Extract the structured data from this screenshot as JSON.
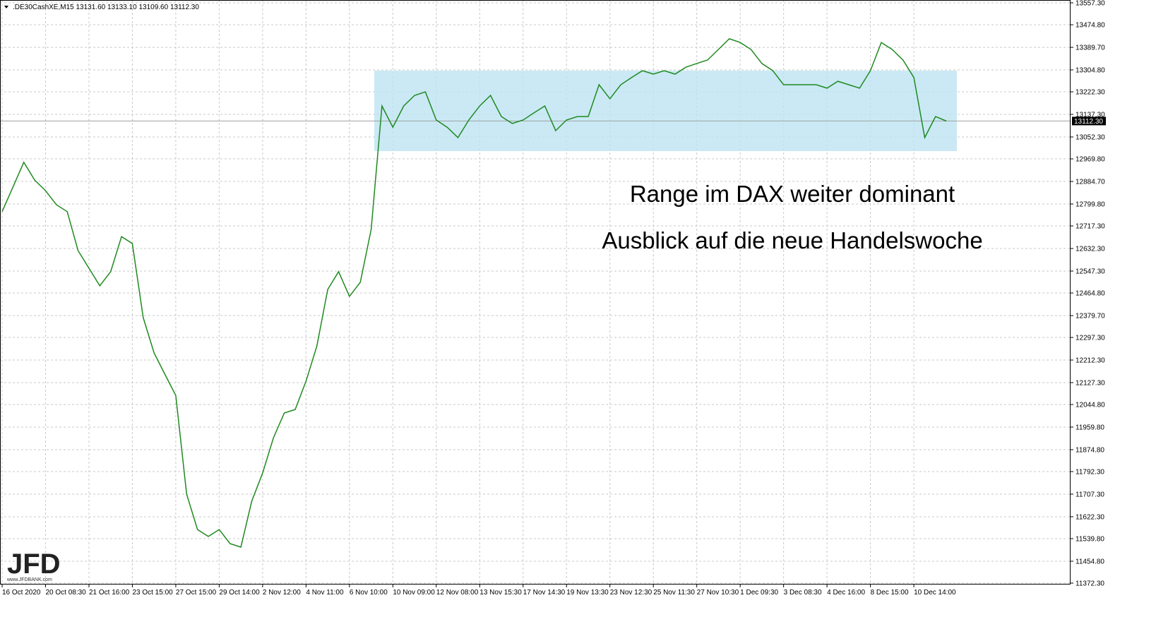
{
  "chart_data": {
    "type": "line",
    "header": ".DE30CashXE,M15  13131.60 13133.10 13109.60 13112.30",
    "annotations": [
      "Range im DAX weiter dominant",
      "Ausblick auf die neue Handelswoche"
    ],
    "logo": "JFD",
    "logo_url": "www.JFDBANK.com",
    "categories": [
      "16 Oct 2020",
      null,
      null,
      null,
      "20 Oct 08:30",
      null,
      null,
      null,
      "21 Oct 16:00",
      null,
      null,
      null,
      "23 Oct 15:00",
      null,
      null,
      null,
      "27 Oct 15:00",
      null,
      null,
      null,
      "29 Oct 14:00",
      null,
      null,
      null,
      "2 Nov 12:00",
      null,
      null,
      null,
      "4 Nov 11:00",
      null,
      null,
      null,
      "6 Nov 10:00",
      null,
      null,
      null,
      "10 Nov 09:00",
      null,
      null,
      null,
      "12 Nov 08:00",
      null,
      null,
      null,
      "13 Nov 15:30",
      null,
      null,
      null,
      "17 Nov 14:30",
      null,
      null,
      null,
      "19 Nov 13:30",
      null,
      null,
      null,
      "23 Nov 12:30",
      null,
      null,
      null,
      "25 Nov 11:30",
      null,
      null,
      null,
      "27 Nov 10:30",
      null,
      null,
      null,
      "1 Dec 09:30",
      null,
      null,
      null,
      "3 Dec 08:30",
      null,
      null,
      null,
      "4 Dec 16:00",
      null,
      null,
      null,
      "8 Dec 15:00",
      null,
      null,
      null,
      "10 Dec 14:00",
      null,
      null,
      null
    ],
    "series": [
      {
        "name": ".DE30CashXE,M15",
        "color": "#1f8a1f",
        "values": [
          12771,
          12864,
          12957,
          12890,
          12850,
          12797,
          12771,
          12624,
          12558,
          12492,
          12545,
          12677,
          12651,
          12372,
          12239,
          12159,
          12079,
          11707,
          11574,
          11548,
          11574,
          11521,
          11508,
          11681,
          11787,
          11920,
          12013,
          12026,
          12133,
          12265,
          12478,
          12545,
          12452,
          12505,
          12704,
          13169,
          13089,
          13169,
          13209,
          13222,
          13116,
          13089,
          13050,
          13116,
          13169,
          13209,
          13129,
          13103,
          13116,
          13143,
          13169,
          13076,
          13116,
          13129,
          13129,
          13249,
          13196,
          13249,
          13276,
          13302,
          13289,
          13302,
          13289,
          13315,
          13329,
          13342,
          13382,
          13422,
          13408,
          13382,
          13329,
          13302,
          13249,
          13249,
          13249,
          13249,
          13236,
          13262,
          13249,
          13236,
          13302,
          13408,
          13382,
          13342,
          13276,
          13050,
          13129,
          13112
        ]
      }
    ],
    "range_band": [
      12999,
      13302
    ],
    "band_color": "#bde3f2",
    "last_price": {
      "value": 13112.3,
      "label": "13112.30"
    },
    "ylim": [
      11367,
      13568
    ],
    "yticks": [
      {
        "value": 13557.3,
        "label": "13557.30"
      },
      {
        "value": 13474.8,
        "label": "13474.80"
      },
      {
        "value": 13389.7,
        "label": "13389.70"
      },
      {
        "value": 13304.8,
        "label": "13304.80"
      },
      {
        "value": 13222.3,
        "label": "13222.30"
      },
      {
        "value": 13137.3,
        "label": "13137.30"
      },
      {
        "value": 13052.3,
        "label": "13052.30"
      },
      {
        "value": 12969.8,
        "label": "12969.80"
      },
      {
        "value": 12884.7,
        "label": "12884.70"
      },
      {
        "value": 12799.8,
        "label": "12799.80"
      },
      {
        "value": 12717.3,
        "label": "12717.30"
      },
      {
        "value": 12632.3,
        "label": "12632.30"
      },
      {
        "value": 12547.3,
        "label": "12547.30"
      },
      {
        "value": 12464.8,
        "label": "12464.80"
      },
      {
        "value": 12379.7,
        "label": "12379.70"
      },
      {
        "value": 12297.3,
        "label": "12297.30"
      },
      {
        "value": 12212.3,
        "label": "12212.30"
      },
      {
        "value": 12127.3,
        "label": "12127.30"
      },
      {
        "value": 12044.8,
        "label": "12044.80"
      },
      {
        "value": 11959.8,
        "label": "11959.80"
      },
      {
        "value": 11874.8,
        "label": "11874.80"
      },
      {
        "value": 11792.3,
        "label": "11792.30"
      },
      {
        "value": 11707.3,
        "label": "11707.30"
      },
      {
        "value": 11622.3,
        "label": "11622.30"
      },
      {
        "value": 11539.8,
        "label": "11539.80"
      },
      {
        "value": 11454.8,
        "label": "11454.80"
      },
      {
        "value": 11372.3,
        "label": "11372.30"
      }
    ],
    "grid": true
  }
}
